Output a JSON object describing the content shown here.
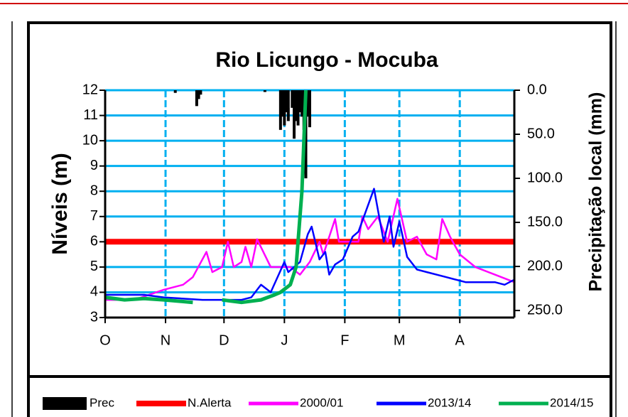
{
  "chart_data": {
    "type": "line",
    "title": "Rio  Licungo - Mocuba",
    "y_label": "Níveis (m)",
    "y2_label": "Precipitação local (mm)",
    "xlim": [
      0,
      210
    ],
    "xticks": [
      {
        "value": 0,
        "label": "O"
      },
      {
        "value": 31,
        "label": "N"
      },
      {
        "value": 61,
        "label": "D"
      },
      {
        "value": 92,
        "label": "J"
      },
      {
        "value": 123,
        "label": "F"
      },
      {
        "value": 151,
        "label": "M"
      },
      {
        "value": 182,
        "label": "A"
      }
    ],
    "ylim": [
      3,
      12
    ],
    "yticks": [
      3,
      4,
      5,
      6,
      7,
      8,
      9,
      10,
      11,
      12
    ],
    "y2lim": [
      258,
      0
    ],
    "y2ticks": [
      {
        "value": 0,
        "label": "0.0"
      },
      {
        "value": 50,
        "label": "50.0"
      },
      {
        "value": 100,
        "label": "100.0"
      },
      {
        "value": 150,
        "label": "150.0"
      },
      {
        "value": 200,
        "label": "200.0"
      },
      {
        "value": 250,
        "label": "250.0"
      }
    ],
    "grid": true,
    "grid_color": "#00b0f0",
    "legend": "bottom",
    "series": [
      {
        "name": "Prec",
        "type": "bar",
        "axis": "y2",
        "color": "#000000",
        "x": [
          36,
          47,
          48,
          49,
          82,
          90,
          91,
          92,
          93,
          94,
          96,
          97,
          98,
          99,
          100,
          101,
          102,
          103,
          104,
          105
        ],
        "values": [
          3,
          18,
          10,
          5,
          2,
          45,
          30,
          40,
          25,
          35,
          20,
          55,
          35,
          40,
          25,
          30,
          45,
          100,
          30,
          42
        ]
      },
      {
        "name": "N.Alerta",
        "type": "line",
        "color": "#ff0000",
        "width": 8,
        "x": [
          0,
          210
        ],
        "values": [
          6,
          6
        ]
      },
      {
        "name": "2000/01",
        "type": "line",
        "color": "#ff00ff",
        "width": 2.5,
        "x": [
          0,
          15,
          30,
          40,
          45,
          52,
          55,
          60,
          63,
          66,
          70,
          72,
          75,
          78,
          85,
          95,
          100,
          105,
          110,
          112,
          118,
          120,
          125,
          130,
          132,
          135,
          140,
          145,
          150,
          155,
          160,
          165,
          170,
          173,
          177,
          182,
          190,
          200,
          210
        ],
        "values": [
          3.7,
          3.7,
          4.1,
          4.3,
          4.6,
          5.6,
          4.8,
          5.0,
          6.0,
          5.0,
          5.2,
          5.8,
          5.0,
          6.1,
          5.0,
          5.0,
          4.7,
          5.2,
          6.0,
          5.5,
          6.9,
          6.0,
          6.0,
          6.0,
          7.0,
          6.5,
          7.0,
          6.0,
          7.7,
          6.0,
          6.2,
          5.5,
          5.3,
          6.9,
          6.2,
          5.5,
          5.0,
          4.7,
          4.4
        ]
      },
      {
        "name": "2013/14",
        "type": "line",
        "color": "#0000ff",
        "width": 2.5,
        "x": [
          0,
          20,
          30,
          50,
          70,
          75,
          80,
          85,
          92,
          94,
          100,
          104,
          106,
          110,
          113,
          115,
          118,
          122,
          127,
          130,
          138,
          143,
          146,
          148,
          151,
          155,
          160,
          165,
          175,
          185,
          190,
          200,
          205,
          210
        ],
        "values": [
          3.9,
          3.9,
          3.8,
          3.7,
          3.7,
          3.8,
          4.3,
          4.0,
          5.2,
          4.8,
          5.2,
          6.3,
          6.6,
          5.3,
          5.6,
          4.7,
          5.1,
          5.3,
          6.2,
          6.4,
          8.1,
          6.0,
          7.0,
          5.8,
          6.8,
          5.4,
          4.9,
          4.8,
          4.6,
          4.4,
          4.4,
          4.4,
          4.3,
          4.5
        ]
      },
      {
        "name": "2014/15",
        "type": "line",
        "color": "#00b050",
        "width": 5,
        "x": [
          0,
          10,
          20,
          30,
          45,
          52,
          60,
          70,
          80,
          87,
          90,
          95,
          98,
          101,
          103
        ],
        "values": [
          3.8,
          3.7,
          3.75,
          3.7,
          3.6,
          null,
          3.7,
          3.6,
          3.7,
          3.9,
          4.0,
          4.3,
          5.0,
          8.0,
          12.0
        ]
      }
    ]
  }
}
